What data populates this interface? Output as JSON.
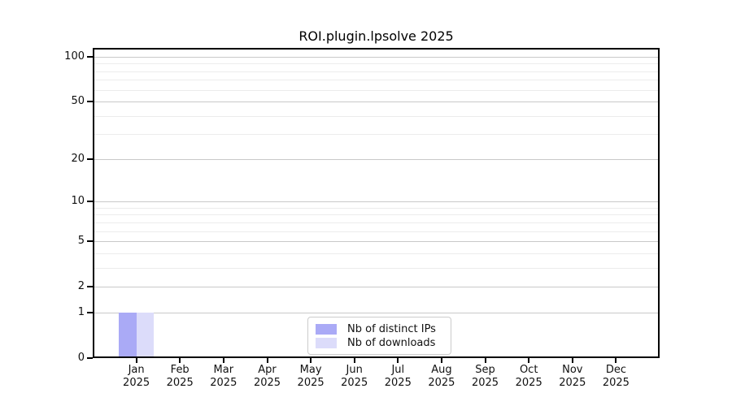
{
  "chart": {
    "title": "ROI.plugin.lpsolve 2025",
    "legend": {
      "items": [
        {
          "label": "Nb of distinct IPs",
          "color": "#aaaaf6"
        },
        {
          "label": "Nb of downloads",
          "color": "#dcdcfa"
        }
      ]
    }
  },
  "chart_data": {
    "type": "bar",
    "title": "ROI.plugin.lpsolve 2025",
    "categories": [
      "Jan",
      "Feb",
      "Mar",
      "Apr",
      "May",
      "Jun",
      "Jul",
      "Aug",
      "Sep",
      "Oct",
      "Nov",
      "Dec"
    ],
    "x_tick_second_line": "2025",
    "series": [
      {
        "name": "Nb of distinct IPs",
        "color": "#aaaaf6",
        "values": [
          1,
          0,
          0,
          0,
          0,
          0,
          0,
          0,
          0,
          0,
          0,
          0
        ]
      },
      {
        "name": "Nb of downloads",
        "color": "#dcdcfa",
        "values": [
          1,
          0,
          0,
          0,
          0,
          0,
          0,
          0,
          0,
          0,
          0,
          0
        ]
      }
    ],
    "yscale": "log1p",
    "ylim": [
      0,
      115
    ],
    "y_major_ticks": [
      100,
      50,
      20,
      10,
      5,
      2,
      1,
      0
    ],
    "y_minor_gridlines": [
      3,
      4,
      6,
      7,
      8,
      9,
      30,
      40,
      60,
      70,
      80,
      90
    ],
    "grid": "horizontal",
    "legend_position": "lower center",
    "colors": {
      "background": "#ffffff",
      "spine": "#000000",
      "major_grid": "#c9c9c9",
      "minor_grid": "#ececec",
      "text": "#111111"
    }
  }
}
